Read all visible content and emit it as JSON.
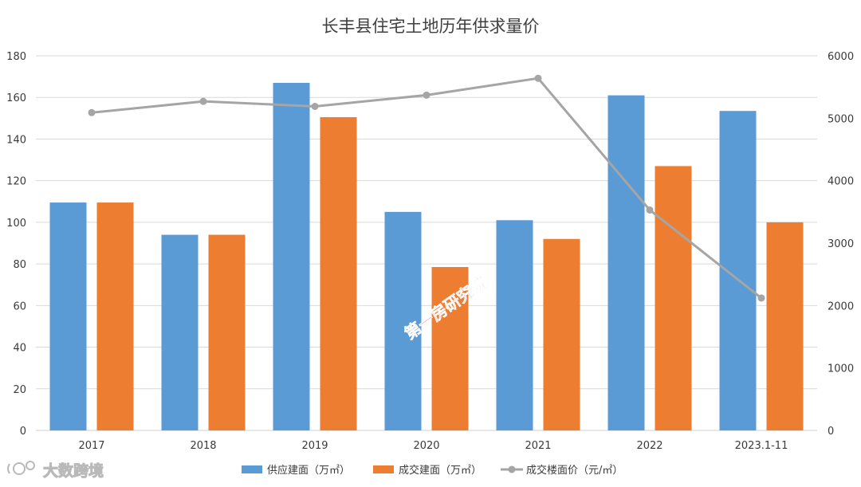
{
  "chart_data": {
    "type": "bar",
    "title": "长丰县住宅土地历年供求量价",
    "categories": [
      "2017",
      "2018",
      "2019",
      "2020",
      "2021",
      "2022",
      "2023.1-11"
    ],
    "series": [
      {
        "name": "供应建面（万㎡）",
        "type": "bar",
        "axis": "left",
        "color": "#5b9bd5",
        "values": [
          109.5,
          94,
          167,
          105,
          101,
          161,
          153.5
        ]
      },
      {
        "name": "成交建面（万㎡）",
        "type": "bar",
        "axis": "left",
        "color": "#ed7d31",
        "values": [
          109.5,
          94,
          150.5,
          78.5,
          92,
          127,
          100
        ]
      },
      {
        "name": "成交楼面价（元/㎡）",
        "type": "line",
        "axis": "right",
        "color": "#a5a5a5",
        "values": [
          5090,
          5270,
          5190,
          5370,
          5640,
          3530,
          2120
        ]
      }
    ],
    "y_left": {
      "min": 0,
      "max": 180,
      "step": 20
    },
    "y_right": {
      "min": 0,
      "max": 6000,
      "step": 1000
    },
    "legend_position": "bottom",
    "grid": true
  },
  "watermark": {
    "text": "第一房研究院"
  },
  "brand": {
    "text": "大数跨境"
  }
}
